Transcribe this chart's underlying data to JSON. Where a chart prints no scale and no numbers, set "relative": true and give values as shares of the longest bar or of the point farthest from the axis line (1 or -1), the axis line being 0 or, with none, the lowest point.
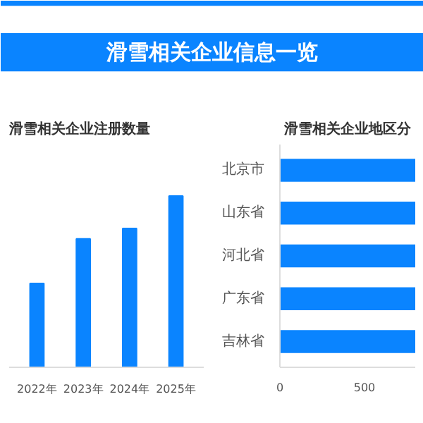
{
  "chart_data": [
    {
      "type": "other",
      "title": "滑雪相关企业信息一览"
    },
    {
      "type": "bar",
      "title": "滑雪相关企业注册数量",
      "categories": [
        "2022年",
        "2023年",
        "2024年",
        "2025年"
      ],
      "values": [
        0.49,
        0.75,
        0.81,
        1
      ],
      "relative": true,
      "color": "#0a84ff"
    },
    {
      "type": "bar",
      "orientation": "horizontal",
      "title": "滑雪相关企业地区分",
      "categories": [
        "北京市",
        "山东省",
        "河北省",
        "广东省",
        "吉林省"
      ],
      "values": [
        800,
        800,
        800,
        800,
        800
      ],
      "xlim": [
        0,
        800
      ],
      "xticks": [
        0,
        500
      ],
      "color": "#0a84ff"
    }
  ]
}
